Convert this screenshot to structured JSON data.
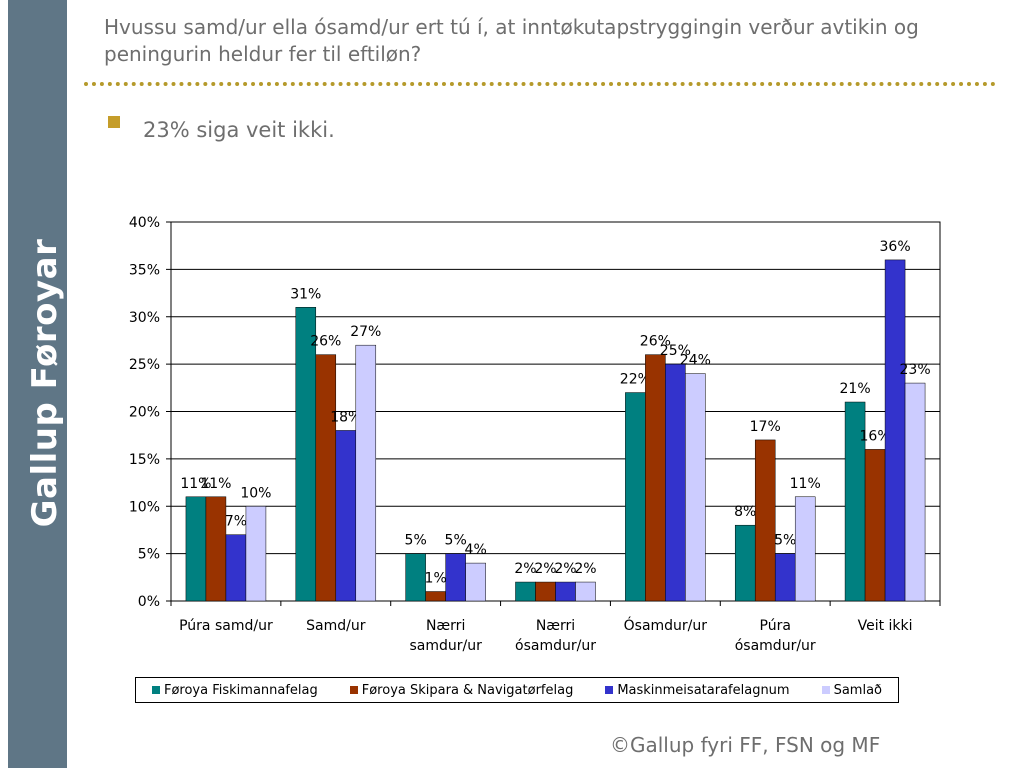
{
  "sidebar": {
    "brand": "Gallup Føroyar"
  },
  "slide": {
    "title": "Hvussu samd/ur ella ósamd/ur ert tú í, at inntøkutapstryggingin verður avtikin og peningurin heldur fer til eftiløn?",
    "bullet": "23% siga veit ikki.",
    "footer": "©Gallup fyri FF, FSN og MF"
  },
  "chart_data": {
    "type": "bar",
    "categories": [
      [
        "Púra samd/ur"
      ],
      [
        "Samd/ur"
      ],
      [
        "Nærri",
        "samdur/ur"
      ],
      [
        "Nærri",
        "ósamdur/ur"
      ],
      [
        "Ósamdur/ur"
      ],
      [
        "Púra",
        "ósamdur/ur"
      ],
      [
        "Veit ikki"
      ]
    ],
    "series": [
      {
        "name": "Føroya Fiskimannafelag",
        "color": "#008080",
        "values": [
          11,
          31,
          5,
          2,
          22,
          8,
          21
        ]
      },
      {
        "name": "Føroya Skipara & Navigatørfelag",
        "color": "#993300",
        "values": [
          11,
          26,
          1,
          2,
          26,
          17,
          16
        ]
      },
      {
        "name": "Maskinmeisatarafelagnum",
        "color": "#3333cc",
        "values": [
          7,
          18,
          5,
          2,
          25,
          5,
          36
        ]
      },
      {
        "name": "Samlað",
        "color": "#ccccff",
        "values": [
          10,
          27,
          4,
          2,
          24,
          11,
          23
        ]
      }
    ],
    "ylim": [
      0,
      40
    ],
    "yticks": [
      0,
      5,
      10,
      15,
      20,
      25,
      30,
      35,
      40
    ],
    "value_suffix": "%",
    "legend_position": "bottom",
    "grid": true
  }
}
